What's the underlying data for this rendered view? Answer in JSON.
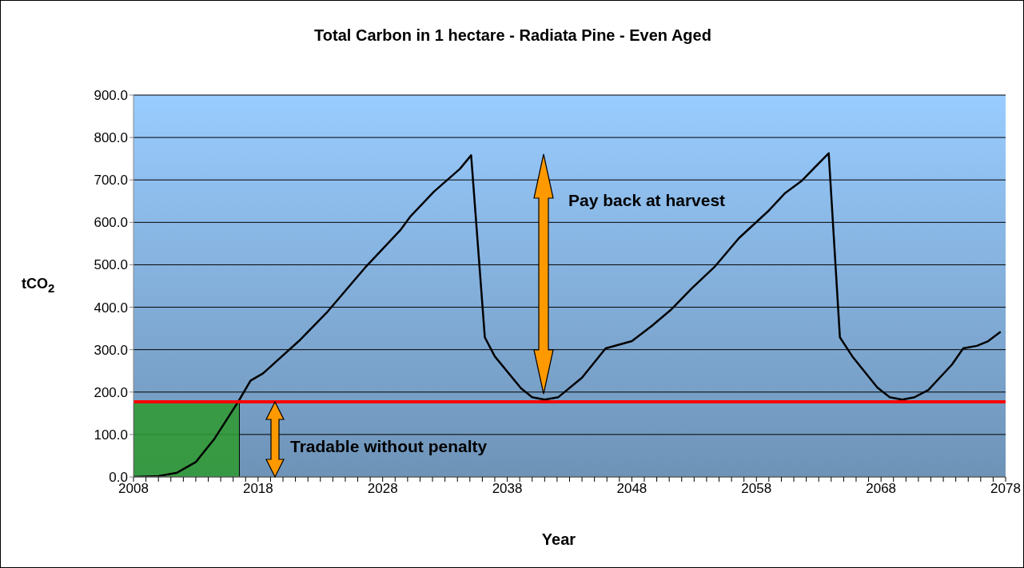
{
  "chart_data": {
    "type": "line",
    "title": "Total Carbon in 1 hectare - Radiata Pine - Even Aged",
    "xlabel": "Year",
    "ylabel": "tCO$_{2}$",
    "annotations": [
      "Pay back at harvest",
      "Tradable without penalty"
    ],
    "series": [
      {
        "color": "#000000",
        "x": [
          2008,
          2010,
          2011.5,
          2013,
          2014.5,
          2016.4,
          2017.4,
          2018.4,
          2021.3,
          2023.5,
          2026.7,
          2029.4,
          2030.2,
          2032.1,
          2034.2,
          2035.1,
          2036.2,
          2037,
          2039.1,
          2040,
          2041,
          2042.1,
          2044,
          2045.9,
          2048,
          2049.6,
          2051.1,
          2052.8,
          2054.7,
          2056.6,
          2059,
          2060.3,
          2061.6,
          2063.8,
          2064.7,
          2065.7,
          2067.7,
          2068.7,
          2069.7,
          2070.7,
          2071.8,
          2073.7,
          2074.6,
          2075.7,
          2076.6,
          2077.6
        ],
        "values": [
          0,
          2,
          10,
          35,
          90,
          177,
          227,
          244,
          321,
          387,
          497,
          581,
          613,
          672,
          726,
          758,
          329,
          284,
          209,
          188,
          182,
          188,
          234,
          303,
          320,
          356,
          393,
          444,
          497,
          563,
          628,
          669,
          697,
          763,
          329,
          284,
          211,
          188,
          182,
          188,
          205,
          265,
          303,
          309,
          320,
          342
        ]
      }
    ],
    "ref_lines": [
      {
        "axis": "y",
        "value": 177,
        "color": "#ff0000"
      }
    ],
    "bands": [
      {
        "axis": "x",
        "from": 2008,
        "to": 2016.5,
        "color": "#2e9a2e"
      }
    ],
    "xlim": [
      2008,
      2078
    ],
    "xticks": [
      2008,
      {
        "value": 2009,
        "label": null
      },
      {
        "value": 2010,
        "label": null
      },
      {
        "value": 2011,
        "label": null
      },
      {
        "value": 2012,
        "label": null
      },
      {
        "value": 2013,
        "label": null
      },
      {
        "value": 2014,
        "label": null
      },
      {
        "value": 2015,
        "label": null
      },
      {
        "value": 2016,
        "label": null
      },
      {
        "value": 2017,
        "label": null
      },
      2018,
      {
        "value": 2019,
        "label": null
      },
      {
        "value": 2020,
        "label": null
      },
      {
        "value": 2021,
        "label": null
      },
      {
        "value": 2022,
        "label": null
      },
      {
        "value": 2023,
        "label": null
      },
      {
        "value": 2024,
        "label": null
      },
      {
        "value": 2025,
        "label": null
      },
      {
        "value": 2026,
        "label": null
      },
      {
        "value": 2027,
        "label": null
      },
      2028,
      {
        "value": 2029,
        "label": null
      },
      {
        "value": 2030,
        "label": null
      },
      {
        "value": 2031,
        "label": null
      },
      {
        "value": 2032,
        "label": null
      },
      {
        "value": 2033,
        "label": null
      },
      {
        "value": 2034,
        "label": null
      },
      {
        "value": 2035,
        "label": null
      },
      {
        "value": 2036,
        "label": null
      },
      {
        "value": 2037,
        "label": null
      },
      2038,
      {
        "value": 2039,
        "label": null
      },
      {
        "value": 2040,
        "label": null
      },
      {
        "value": 2041,
        "label": null
      },
      {
        "value": 2042,
        "label": null
      },
      {
        "value": 2043,
        "label": null
      },
      {
        "value": 2044,
        "label": null
      },
      {
        "value": 2045,
        "label": null
      },
      {
        "value": 2046,
        "label": null
      },
      {
        "value": 2047,
        "label": null
      },
      2048,
      {
        "value": 2049,
        "label": null
      },
      {
        "value": 2050,
        "label": null
      },
      {
        "value": 2051,
        "label": null
      },
      {
        "value": 2052,
        "label": null
      },
      {
        "value": 2053,
        "label": null
      },
      {
        "value": 2054,
        "label": null
      },
      {
        "value": 2055,
        "label": null
      },
      {
        "value": 2056,
        "label": null
      },
      {
        "value": 2057,
        "label": null
      },
      2058,
      {
        "value": 2059,
        "label": null
      },
      {
        "value": 2060,
        "label": null
      },
      {
        "value": 2061,
        "label": null
      },
      {
        "value": 2062,
        "label": null
      },
      {
        "value": 2063,
        "label": null
      },
      {
        "value": 2064,
        "label": null
      },
      {
        "value": 2065,
        "label": null
      },
      {
        "value": 2066,
        "label": null
      },
      {
        "value": 2067,
        "label": null
      },
      2068,
      {
        "value": 2069,
        "label": null
      },
      {
        "value": 2070,
        "label": null
      },
      {
        "value": 2071,
        "label": null
      },
      {
        "value": 2072,
        "label": null
      },
      {
        "value": 2073,
        "label": null
      },
      {
        "value": 2074,
        "label": null
      },
      {
        "value": 2075,
        "label": null
      },
      {
        "value": 2076,
        "label": null
      },
      {
        "value": 2077,
        "label": null
      },
      2078
    ],
    "ylim": [
      0,
      900
    ],
    "yticks": [
      {
        "value": 0,
        "label": "0.0"
      },
      {
        "value": 100,
        "label": "100.0"
      },
      {
        "value": 200,
        "label": "200.0"
      },
      {
        "value": 300,
        "label": "300.0"
      },
      {
        "value": 400,
        "label": "400.0"
      },
      {
        "value": 500,
        "label": "500.0"
      },
      {
        "value": 600,
        "label": "600.0"
      },
      {
        "value": 700,
        "label": "700.0"
      },
      {
        "value": 800,
        "label": "800.0"
      },
      {
        "value": 900,
        "label": "900.0"
      }
    ],
    "grid": "y",
    "legend": false,
    "marker": "none",
    "line_style": "solid"
  }
}
